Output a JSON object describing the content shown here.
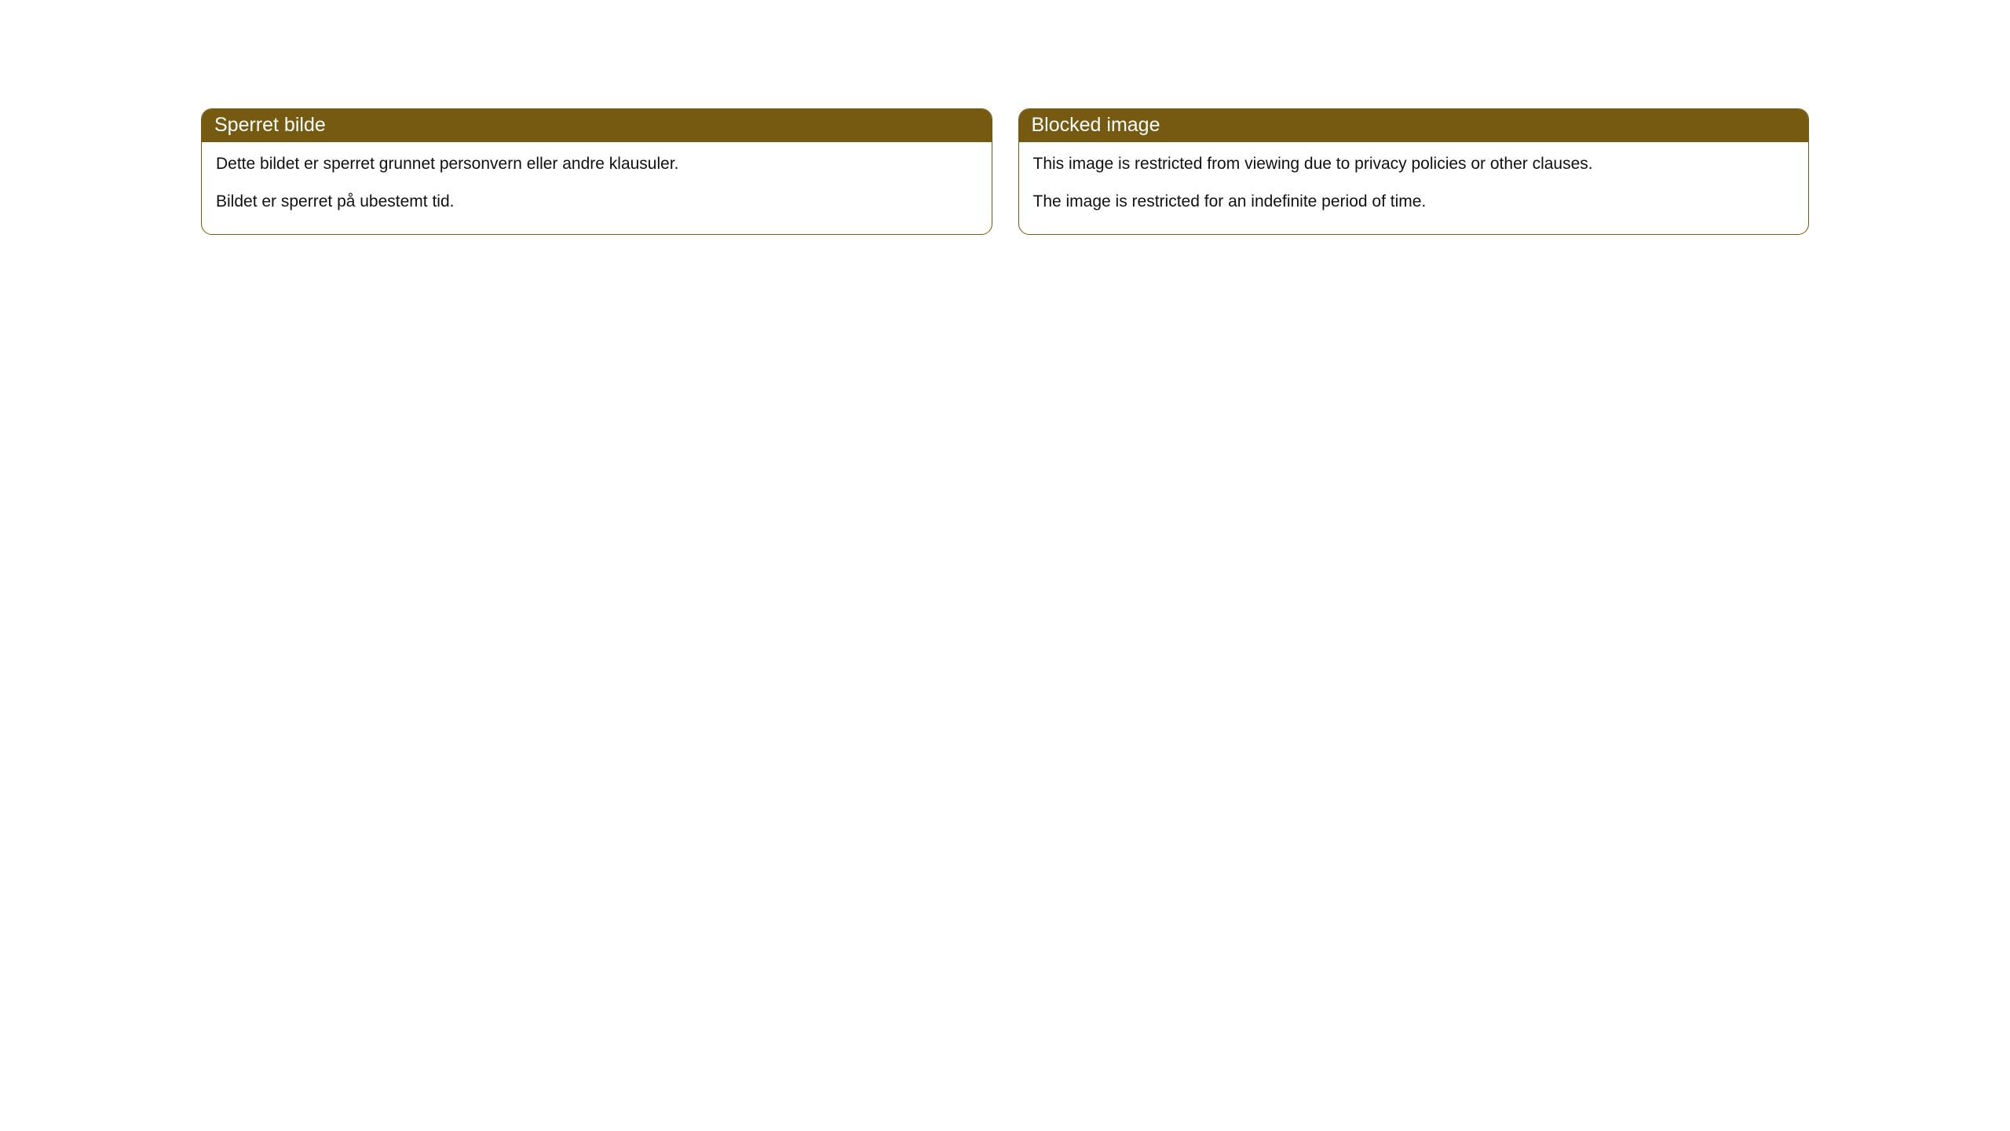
{
  "cards": [
    {
      "title": "Sperret bilde",
      "paragraph1": "Dette bildet er sperret grunnet personvern eller andre klausuler.",
      "paragraph2": "Bildet er sperret på ubestemt tid."
    },
    {
      "title": "Blocked image",
      "paragraph1": "This image is restricted from viewing due to privacy policies or other clauses.",
      "paragraph2": "The image is restricted for an indefinite period of time."
    }
  ],
  "colors": {
    "header_bg": "#775a11",
    "header_text": "#ffffff",
    "border": "#775a11",
    "body_text": "#111111",
    "background": "#ffffff"
  },
  "typography": {
    "header_fontsize": 25,
    "body_fontsize": 21,
    "font_family": "Arial, Helvetica, sans-serif"
  },
  "layout": {
    "border_radius": 14,
    "card_gap": 33,
    "page_padding_top": 138,
    "page_padding_horizontal": 256
  }
}
